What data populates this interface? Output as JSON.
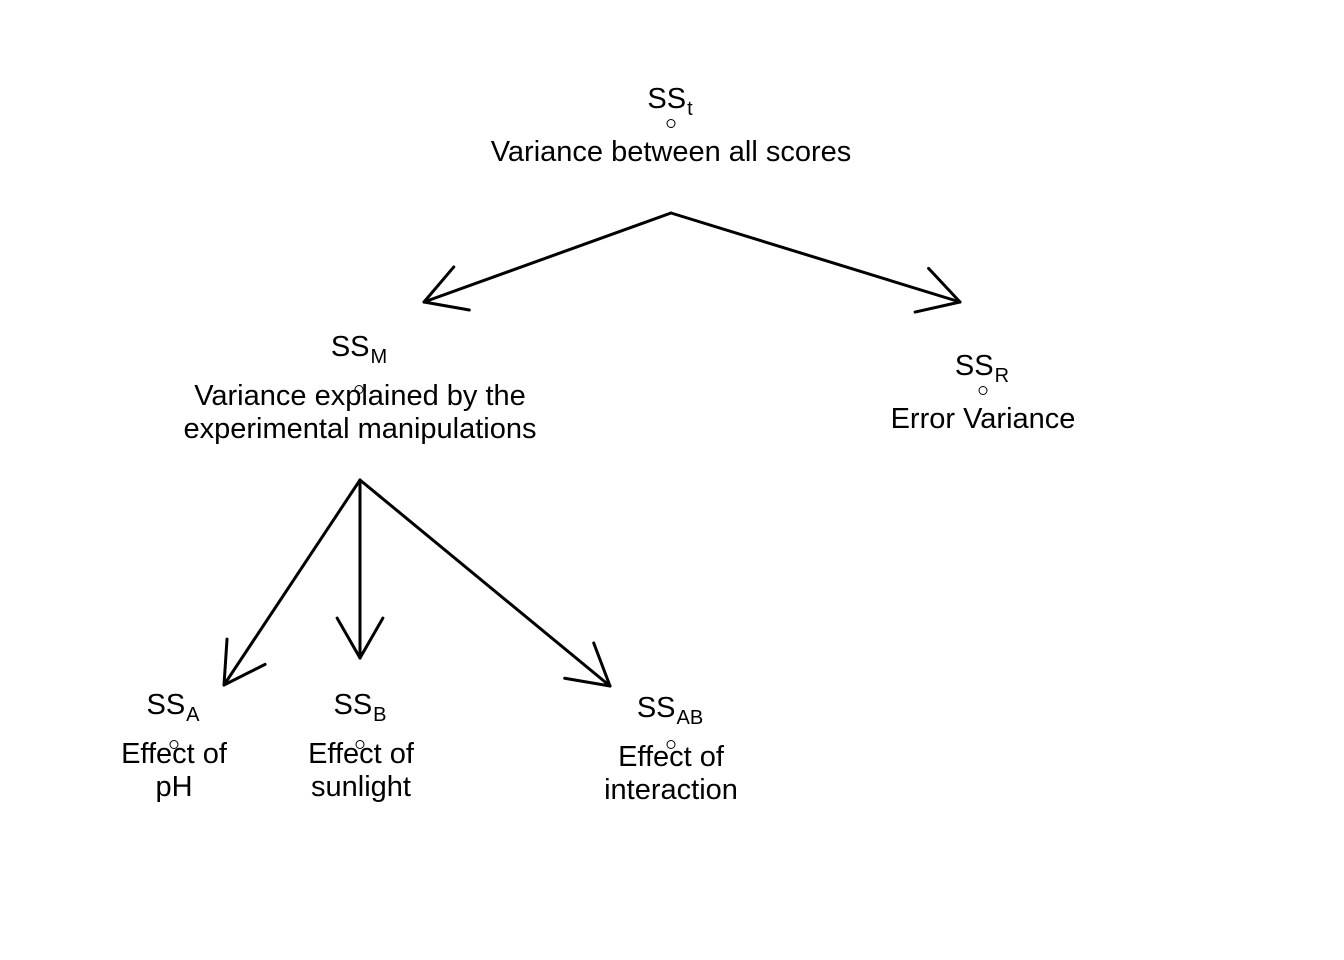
{
  "nodes": {
    "total": {
      "ss_main": "SS",
      "ss_sub": "t",
      "desc_lines": [
        "Variance between all scores"
      ]
    },
    "model": {
      "ss_main": "SS",
      "ss_sub": "M",
      "desc_lines": [
        "Variance explained by the",
        "experimental manipulations"
      ]
    },
    "residual": {
      "ss_main": "SS",
      "ss_sub": "R",
      "desc_lines": [
        "Error Variance"
      ]
    },
    "factor_a": {
      "ss_main": "SS",
      "ss_sub": "A",
      "desc_lines": [
        "Effect of",
        "pH"
      ]
    },
    "factor_b": {
      "ss_main": "SS",
      "ss_sub": "B",
      "desc_lines": [
        "Effect of",
        "sunlight"
      ]
    },
    "interaction": {
      "ss_main": "SS",
      "ss_sub": "AB",
      "desc_lines": [
        "Effect of",
        "interaction"
      ]
    }
  },
  "edges": [
    {
      "from": "total",
      "to": "model"
    },
    {
      "from": "total",
      "to": "residual"
    },
    {
      "from": "model",
      "to": "factor_a"
    },
    {
      "from": "model",
      "to": "factor_b"
    },
    {
      "from": "model",
      "to": "interaction"
    }
  ]
}
